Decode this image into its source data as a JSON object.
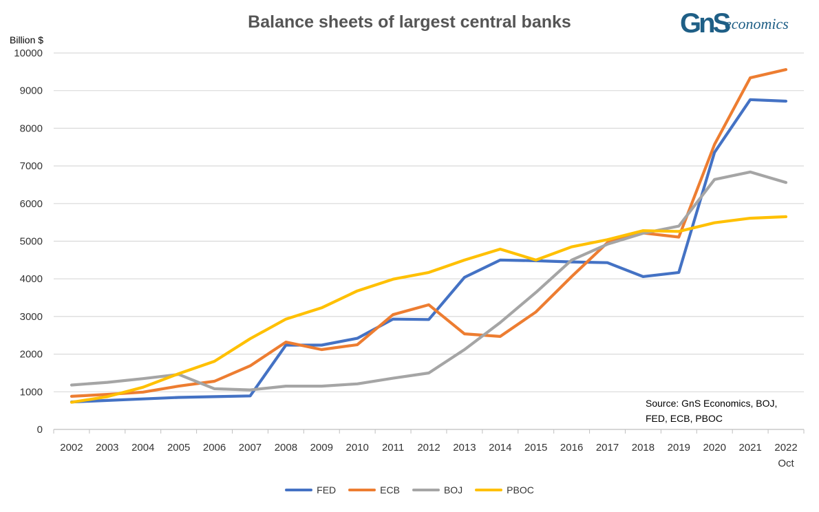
{
  "chart_data": {
    "type": "line",
    "title": "Balance sheets of largest central banks",
    "ylabel": "Billion $",
    "ylim": [
      0,
      10000
    ],
    "yticks": [
      0,
      1000,
      2000,
      3000,
      4000,
      5000,
      6000,
      7000,
      8000,
      9000,
      10000
    ],
    "categories": [
      "2002",
      "2003",
      "2004",
      "2005",
      "2006",
      "2007",
      "2008",
      "2009",
      "2010",
      "2011",
      "2012",
      "2013",
      "2014",
      "2015",
      "2016",
      "2017",
      "2018",
      "2019",
      "2020",
      "2021",
      "2022"
    ],
    "last_category_note": "Oct",
    "grid": "horizontal",
    "legend_position": "bottom",
    "series": [
      {
        "name": "FED",
        "color": "#4472C4",
        "values": [
          730,
          770,
          810,
          850,
          870,
          890,
          2240,
          2240,
          2420,
          2930,
          2920,
          4040,
          4500,
          4480,
          4450,
          4430,
          4060,
          4170,
          7360,
          8760,
          8720
        ]
      },
      {
        "name": "ECB",
        "color": "#ED7D31",
        "values": [
          880,
          930,
          990,
          1150,
          1280,
          1690,
          2320,
          2120,
          2250,
          3050,
          3310,
          2540,
          2470,
          3120,
          4060,
          4960,
          5220,
          5110,
          7570,
          9340,
          9560
        ]
      },
      {
        "name": "BOJ",
        "color": "#A5A5A5",
        "values": [
          1180,
          1250,
          1350,
          1460,
          1080,
          1050,
          1150,
          1150,
          1210,
          1360,
          1500,
          2120,
          2840,
          3640,
          4500,
          4920,
          5210,
          5400,
          6640,
          6840,
          6560
        ]
      },
      {
        "name": "PBOC",
        "color": "#FFC000",
        "values": [
          720,
          870,
          1120,
          1480,
          1810,
          2410,
          2930,
          3230,
          3680,
          3990,
          4170,
          4500,
          4790,
          4500,
          4850,
          5040,
          5280,
          5260,
          5490,
          5610,
          5650
        ]
      }
    ]
  },
  "logo": {
    "mark": "GnS",
    "text": "economics"
  },
  "source_note": {
    "line1": "Source: GnS Economics, BOJ,",
    "line2": "FED, ECB, PBOC"
  }
}
